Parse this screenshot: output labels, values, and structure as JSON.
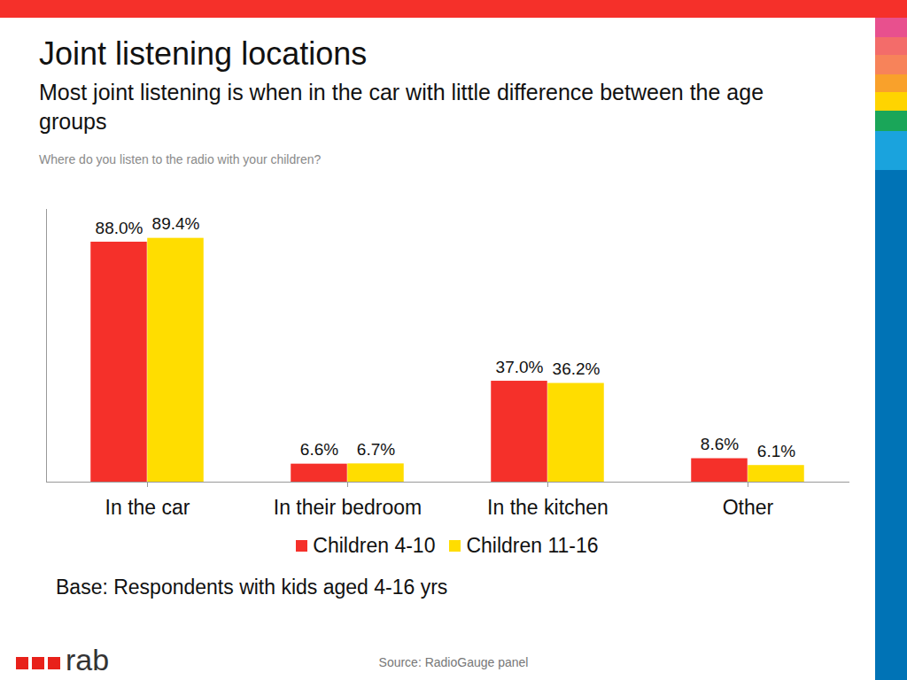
{
  "chart_data": {
    "type": "bar",
    "title": "Joint listening locations",
    "subtitle": "Most joint listening is when in the car with little difference between the age groups",
    "annotations": [
      "Where do you listen to the radio with your children?",
      "Base: Respondents with kids aged 4-16 yrs",
      "Source: RadioGauge panel",
      "rab"
    ],
    "categories": [
      "In the car",
      "In their bedroom",
      "In the kitchen",
      "Other"
    ],
    "series": [
      {
        "name": "Children 4-10",
        "color": "#f5302a",
        "values": [
          88.0,
          6.6,
          37.0,
          8.6
        ],
        "value_labels": [
          "88.0%",
          "6.6%",
          "37.0%",
          "8.6%"
        ]
      },
      {
        "name": "Children 11-16",
        "color": "#ffdd00",
        "values": [
          89.4,
          6.7,
          36.2,
          6.1
        ],
        "value_labels": [
          "89.4%",
          "6.7%",
          "36.2%",
          "6.1%"
        ]
      }
    ],
    "ylim": [
      0,
      100
    ],
    "legend": "bottom",
    "data_labels": true,
    "tick_labels": "x"
  }
}
